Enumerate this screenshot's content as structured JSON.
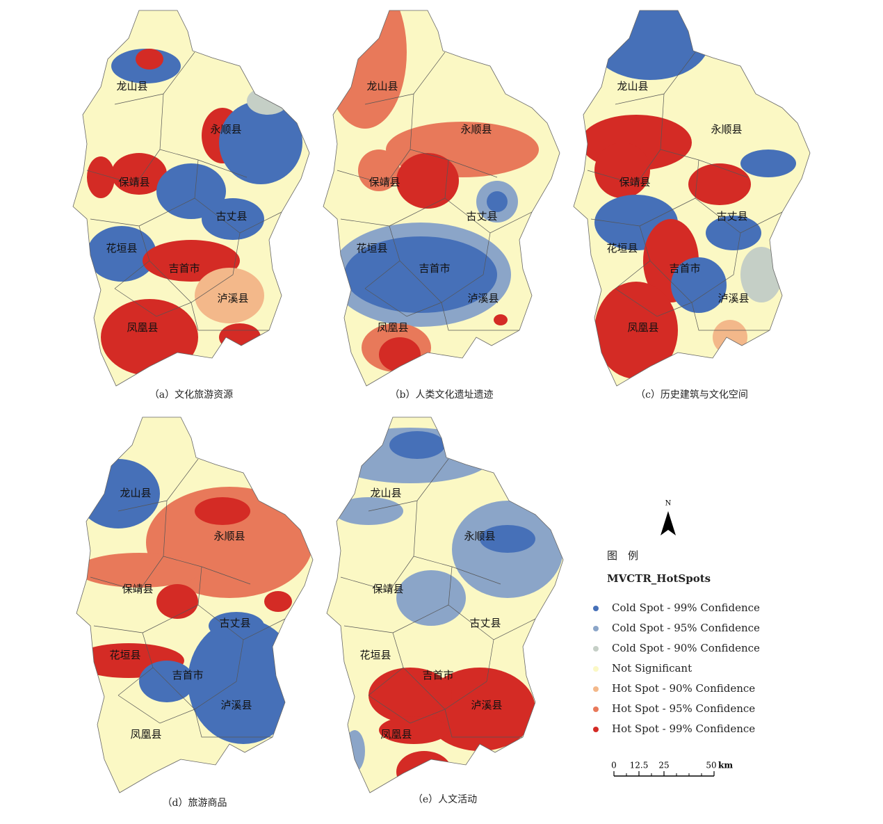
{
  "panels": [
    {
      "caption": "（a）文化旅游资源",
      "labels": [
        "龙山县",
        "永顺县",
        "保靖县",
        "古丈县",
        "花垣县",
        "吉首市",
        "泸溪县",
        "凤凰县"
      ]
    },
    {
      "caption": "（b）人类文化遗址遗迹",
      "labels": [
        "龙山县",
        "永顺县",
        "保靖县",
        "古丈县",
        "花垣县",
        "吉首市",
        "泸溪县",
        "凤凰县"
      ]
    },
    {
      "caption": "（c）历史建筑与文化空间",
      "labels": [
        "龙山县",
        "永顺县",
        "保靖县",
        "古丈县",
        "花垣县",
        "吉首市",
        "泸溪县",
        "凤凰县"
      ]
    },
    {
      "caption": "（d）旅游商品",
      "labels": [
        "龙山县",
        "永顺县",
        "保靖县",
        "古丈县",
        "花垣县",
        "吉首市",
        "泸溪县",
        "凤凰县"
      ]
    },
    {
      "caption": "（e）人文活动",
      "labels": [
        "龙山县",
        "永顺县",
        "保靖县",
        "古丈县",
        "花垣县",
        "吉首市",
        "泸溪县",
        "凤凰县"
      ]
    }
  ],
  "north": "N",
  "legend": {
    "title": "图　例",
    "layer": "MVCTR_HotSpots",
    "items": [
      {
        "name": "Cold Spot - 99% Confidence",
        "color": "#4670b8"
      },
      {
        "name": "Cold Spot - 95% Confidence",
        "color": "#8ba5c8"
      },
      {
        "name": "Cold Spot - 90% Confidence",
        "color": "#c5cfc6"
      },
      {
        "name": "Not Significant",
        "color": "#fbf8c4"
      },
      {
        "name": "Hot Spot - 90% Confidence",
        "color": "#f3b88a"
      },
      {
        "name": "Hot Spot - 95% Confidence",
        "color": "#e8795a"
      },
      {
        "name": "Hot Spot - 99% Confidence",
        "color": "#d42b25"
      }
    ]
  },
  "scale": {
    "ticks": [
      0,
      12.5,
      25,
      50
    ],
    "unit": "km"
  }
}
